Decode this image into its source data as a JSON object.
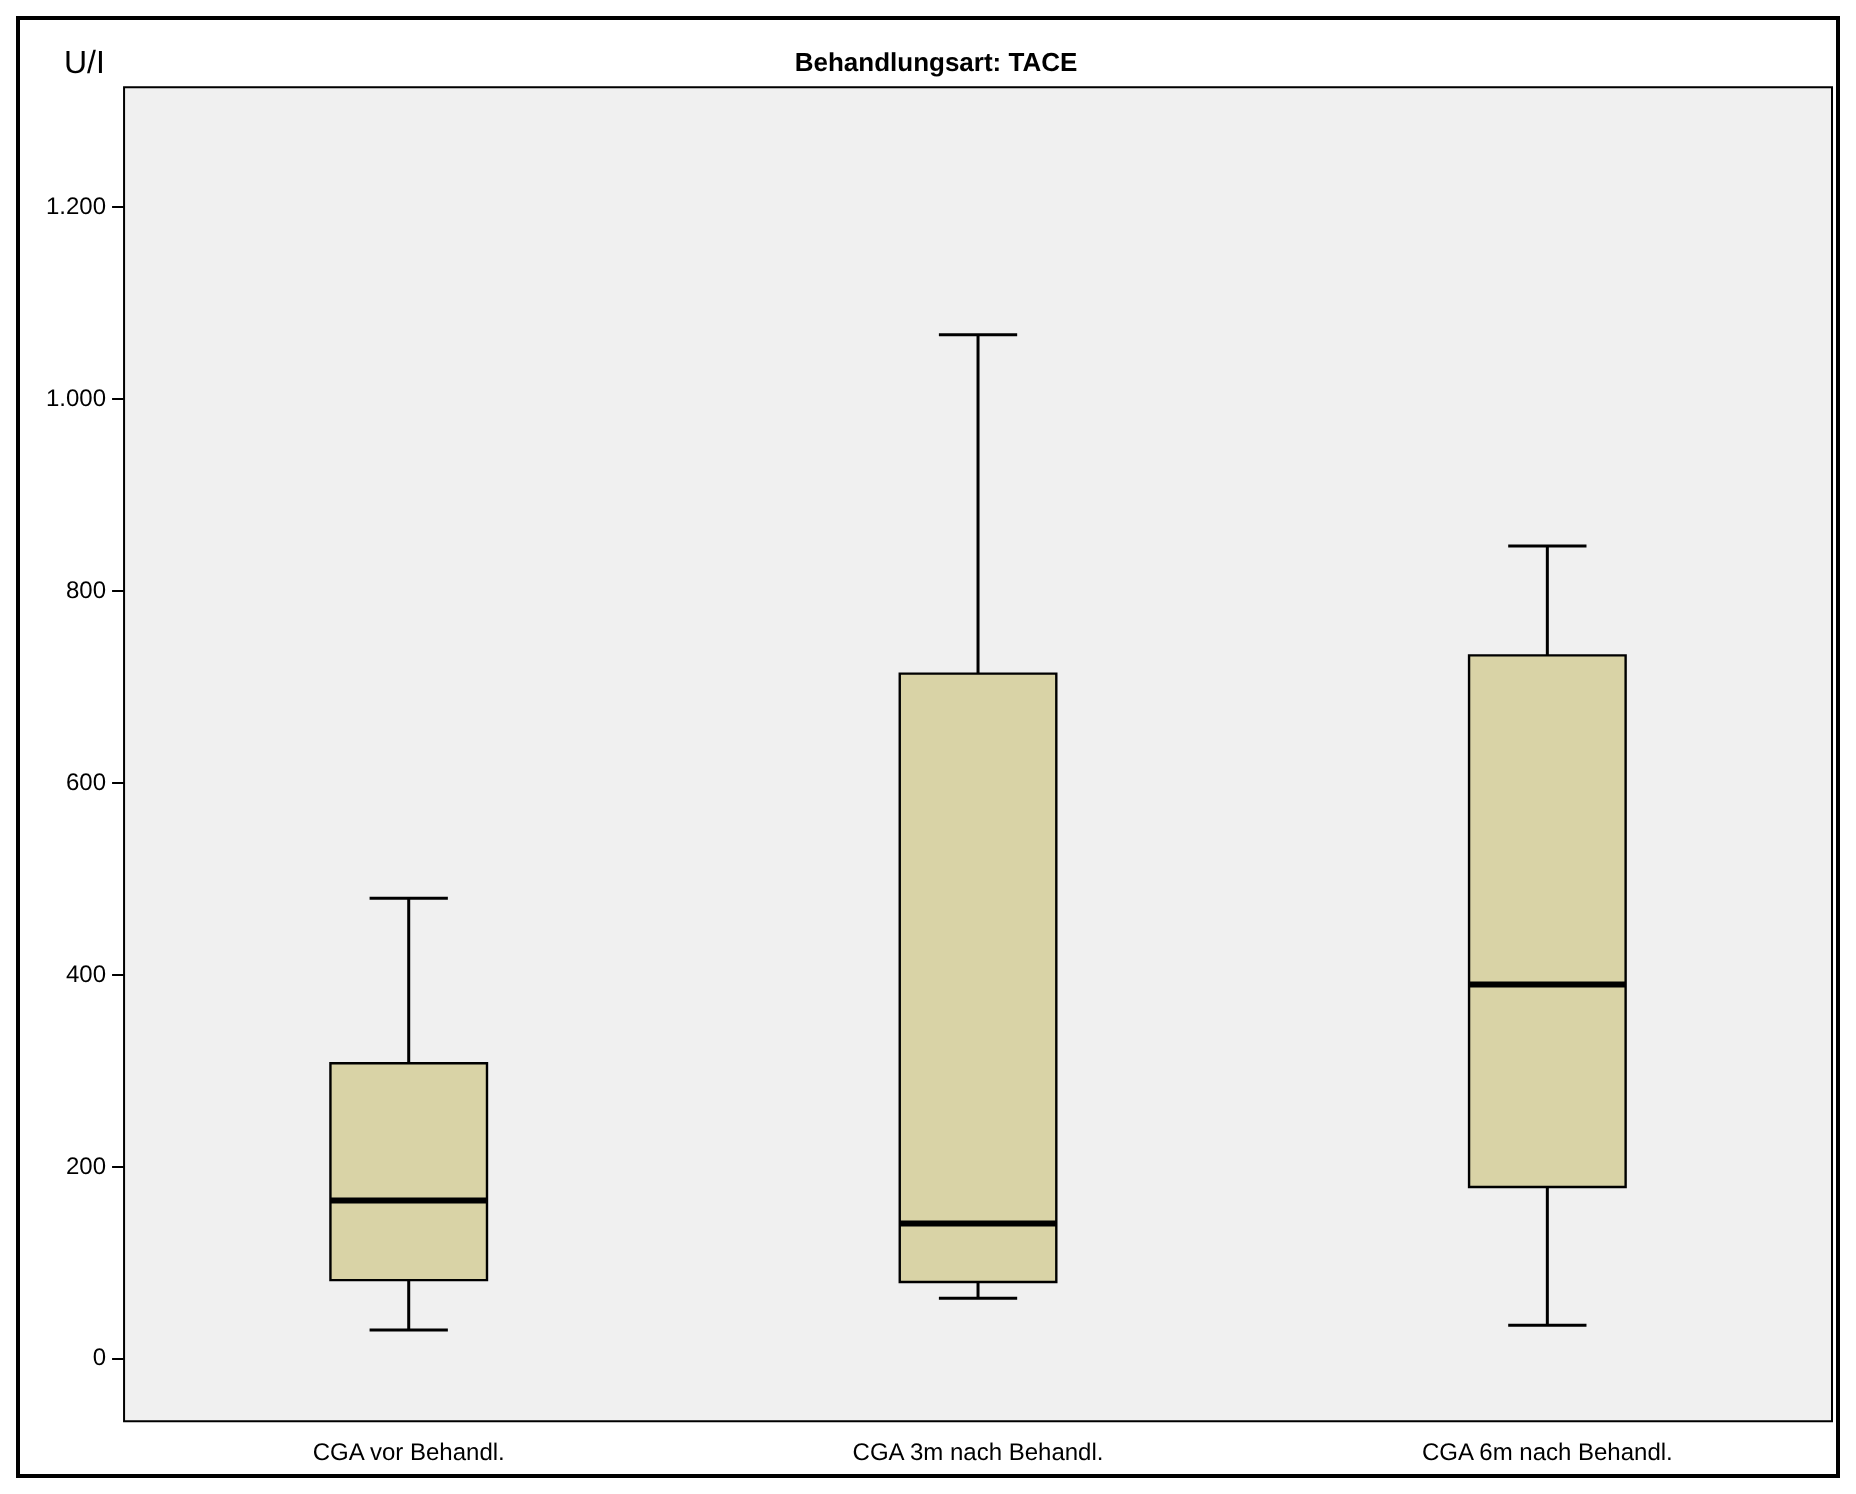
{
  "chart_data": {
    "type": "box",
    "title": "Behandlungsart: TACE",
    "ylabel": "U/I",
    "categories": [
      "CGA vor Behandl.",
      "CGA 3m nach Behandl.",
      "CGA 6m nach Behandl."
    ],
    "color": "#d9d3a6",
    "boxes": [
      {
        "low": 30,
        "q1": 82,
        "median": 165,
        "q3": 308,
        "high": 480
      },
      {
        "low": 63,
        "q1": 80,
        "median": 141,
        "q3": 714,
        "high": 1067
      },
      {
        "low": 35,
        "q1": 179,
        "median": 390,
        "q3": 733,
        "high": 847
      }
    ],
    "ylim": [
      -65,
      1325
    ],
    "yticks": [
      0,
      200,
      400,
      600,
      800,
      {
        "value": 1000,
        "label": "1.000"
      },
      {
        "value": 1200,
        "label": "1.200"
      }
    ],
    "grid": false,
    "legend": false
  }
}
